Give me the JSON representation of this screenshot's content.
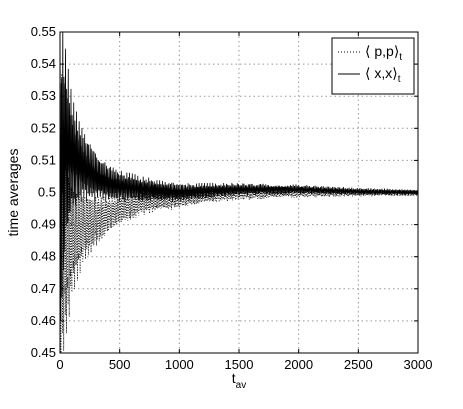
{
  "chart_data": {
    "type": "line",
    "xlabel": "t",
    "xlabel_sub": "av",
    "ylabel": "time averages",
    "xlim": [
      0,
      3000
    ],
    "ylim": [
      0.45,
      0.55
    ],
    "grid": true,
    "legend_position": "top-right",
    "x_ticks": [
      0,
      500,
      1000,
      1500,
      2000,
      2500,
      3000
    ],
    "x_tick_labels": [
      "0",
      "500",
      "1000",
      "1500",
      "2000",
      "2500",
      "3000"
    ],
    "y_ticks": [
      0.45,
      0.46,
      0.47,
      0.48,
      0.49,
      0.5,
      0.51,
      0.52,
      0.53,
      0.54,
      0.55
    ],
    "y_tick_labels": [
      "0.45",
      "0.46",
      "0.47",
      "0.48",
      "0.49",
      "0.5",
      "0.51",
      "0.52",
      "0.53",
      "0.54",
      "0.55"
    ],
    "series": [
      {
        "name": "⟨ p,p⟩",
        "name_sub": "t",
        "style": "dotted",
        "color": "#000000",
        "x": [
          0,
          20,
          50,
          100,
          150,
          200,
          300,
          400,
          500,
          700,
          1000,
          1200,
          1500,
          2000,
          2500,
          3000
        ],
        "center": [
          0.5,
          0.49,
          0.483,
          0.485,
          0.487,
          0.489,
          0.491,
          0.493,
          0.495,
          0.497,
          0.498,
          0.499,
          0.4995,
          0.4998,
          0.4999,
          0.5
        ],
        "amplitude": [
          0.05,
          0.045,
          0.03,
          0.018,
          0.014,
          0.011,
          0.008,
          0.006,
          0.005,
          0.004,
          0.003,
          0.0025,
          0.002,
          0.0015,
          0.0012,
          0.001
        ]
      },
      {
        "name": "⟨ x,x⟩",
        "name_sub": "t",
        "style": "solid",
        "color": "#000000",
        "x": [
          0,
          20,
          50,
          100,
          150,
          200,
          300,
          400,
          500,
          700,
          1000,
          1200,
          1500,
          2000,
          2500,
          3000
        ],
        "center": [
          0.5,
          0.51,
          0.515,
          0.512,
          0.51,
          0.508,
          0.505,
          0.503,
          0.502,
          0.501,
          0.5,
          0.5005,
          0.501,
          0.501,
          0.5003,
          0.5
        ],
        "amplitude": [
          0.05,
          0.045,
          0.03,
          0.018,
          0.014,
          0.011,
          0.008,
          0.006,
          0.005,
          0.004,
          0.003,
          0.0025,
          0.002,
          0.0015,
          0.0012,
          0.001
        ]
      }
    ]
  }
}
